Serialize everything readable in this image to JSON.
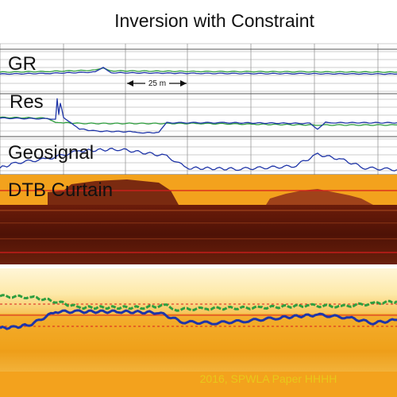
{
  "title": "Inversion with Constraint",
  "scale_bar": {
    "label": "25 m"
  },
  "credit": "2016, SPWLA Paper HHHH",
  "tracks": [
    "GR",
    "Res",
    "Geosignal",
    "DTB Curtain"
  ],
  "colors": {
    "grid": "#9a9a9a",
    "green_curve": "#2f9e3f",
    "blue_curve": "#1f35a8",
    "curtain_top": "#f3a21d",
    "curtain_dark": "#5a1608",
    "marker_red": "#d81e1e",
    "credit_text": "#e8c81a"
  },
  "chart_data": {
    "type": "line",
    "title": "Inversion with Constraint",
    "x_range": [
      0,
      500
    ],
    "panels": [
      {
        "name": "GR",
        "series": [
          {
            "color": "green",
            "x": [
              0,
              60,
              120,
              130,
              140,
              250,
              380,
              500
            ],
            "values": [
              0.52,
              0.5,
              0.46,
              0.4,
              0.48,
              0.5,
              0.51,
              0.52
            ]
          },
          {
            "color": "blue",
            "x": [
              0,
              60,
              120,
              130,
              140,
              250,
              380,
              500
            ],
            "values": [
              0.58,
              0.56,
              0.52,
              0.38,
              0.54,
              0.56,
              0.57,
              0.58
            ]
          }
        ]
      },
      {
        "name": "Res",
        "series": [
          {
            "color": "green",
            "x": [
              0,
              60,
              70,
              80,
              100,
              250,
              320,
              400,
              500
            ],
            "values": [
              0.58,
              0.6,
              0.7,
              0.72,
              0.74,
              0.74,
              0.76,
              0.78,
              0.78
            ]
          },
          {
            "color": "blue",
            "x": [
              0,
              70,
              72,
              74,
              76,
              80,
              90,
              100,
              120,
              170,
              180,
              200,
              210,
              280,
              390,
              400,
              410,
              420,
              500
            ],
            "values": [
              0.6,
              0.62,
              0.1,
              0.5,
              0.2,
              0.58,
              0.72,
              0.88,
              0.94,
              0.96,
              0.98,
              0.98,
              0.72,
              0.72,
              0.74,
              0.9,
              0.7,
              0.72,
              0.72
            ]
          }
        ]
      },
      {
        "name": "Geosignal",
        "series": [
          {
            "color": "blue",
            "x": [
              0,
              20,
              60,
              100,
              150,
              210,
              235,
              300,
              370,
              400,
              430,
              460,
              500
            ],
            "values": [
              0.85,
              0.7,
              0.58,
              0.35,
              0.3,
              0.5,
              0.85,
              0.88,
              0.8,
              0.45,
              0.6,
              0.85,
              0.9
            ]
          }
        ]
      },
      {
        "name": "DTB Curtain",
        "series": [
          {
            "color": "green",
            "x": [
              0,
              40,
              70,
              100,
              180,
              210,
              220,
              260,
              330,
              390,
              430,
              470,
              500
            ],
            "values": [
              0.2,
              0.22,
              0.3,
              0.42,
              0.42,
              0.38,
              0.46,
              0.44,
              0.42,
              0.38,
              0.4,
              0.34,
              0.3
            ]
          },
          {
            "color": "blue",
            "x": [
              0,
              20,
              40,
              70,
              100,
              150,
              200,
              230,
              270,
              310,
              350,
              400,
              440,
              470,
              500
            ],
            "values": [
              0.82,
              0.8,
              0.74,
              0.5,
              0.5,
              0.5,
              0.52,
              0.7,
              0.72,
              0.68,
              0.62,
              0.56,
              0.62,
              0.72,
              0.66
            ]
          }
        ]
      }
    ]
  }
}
